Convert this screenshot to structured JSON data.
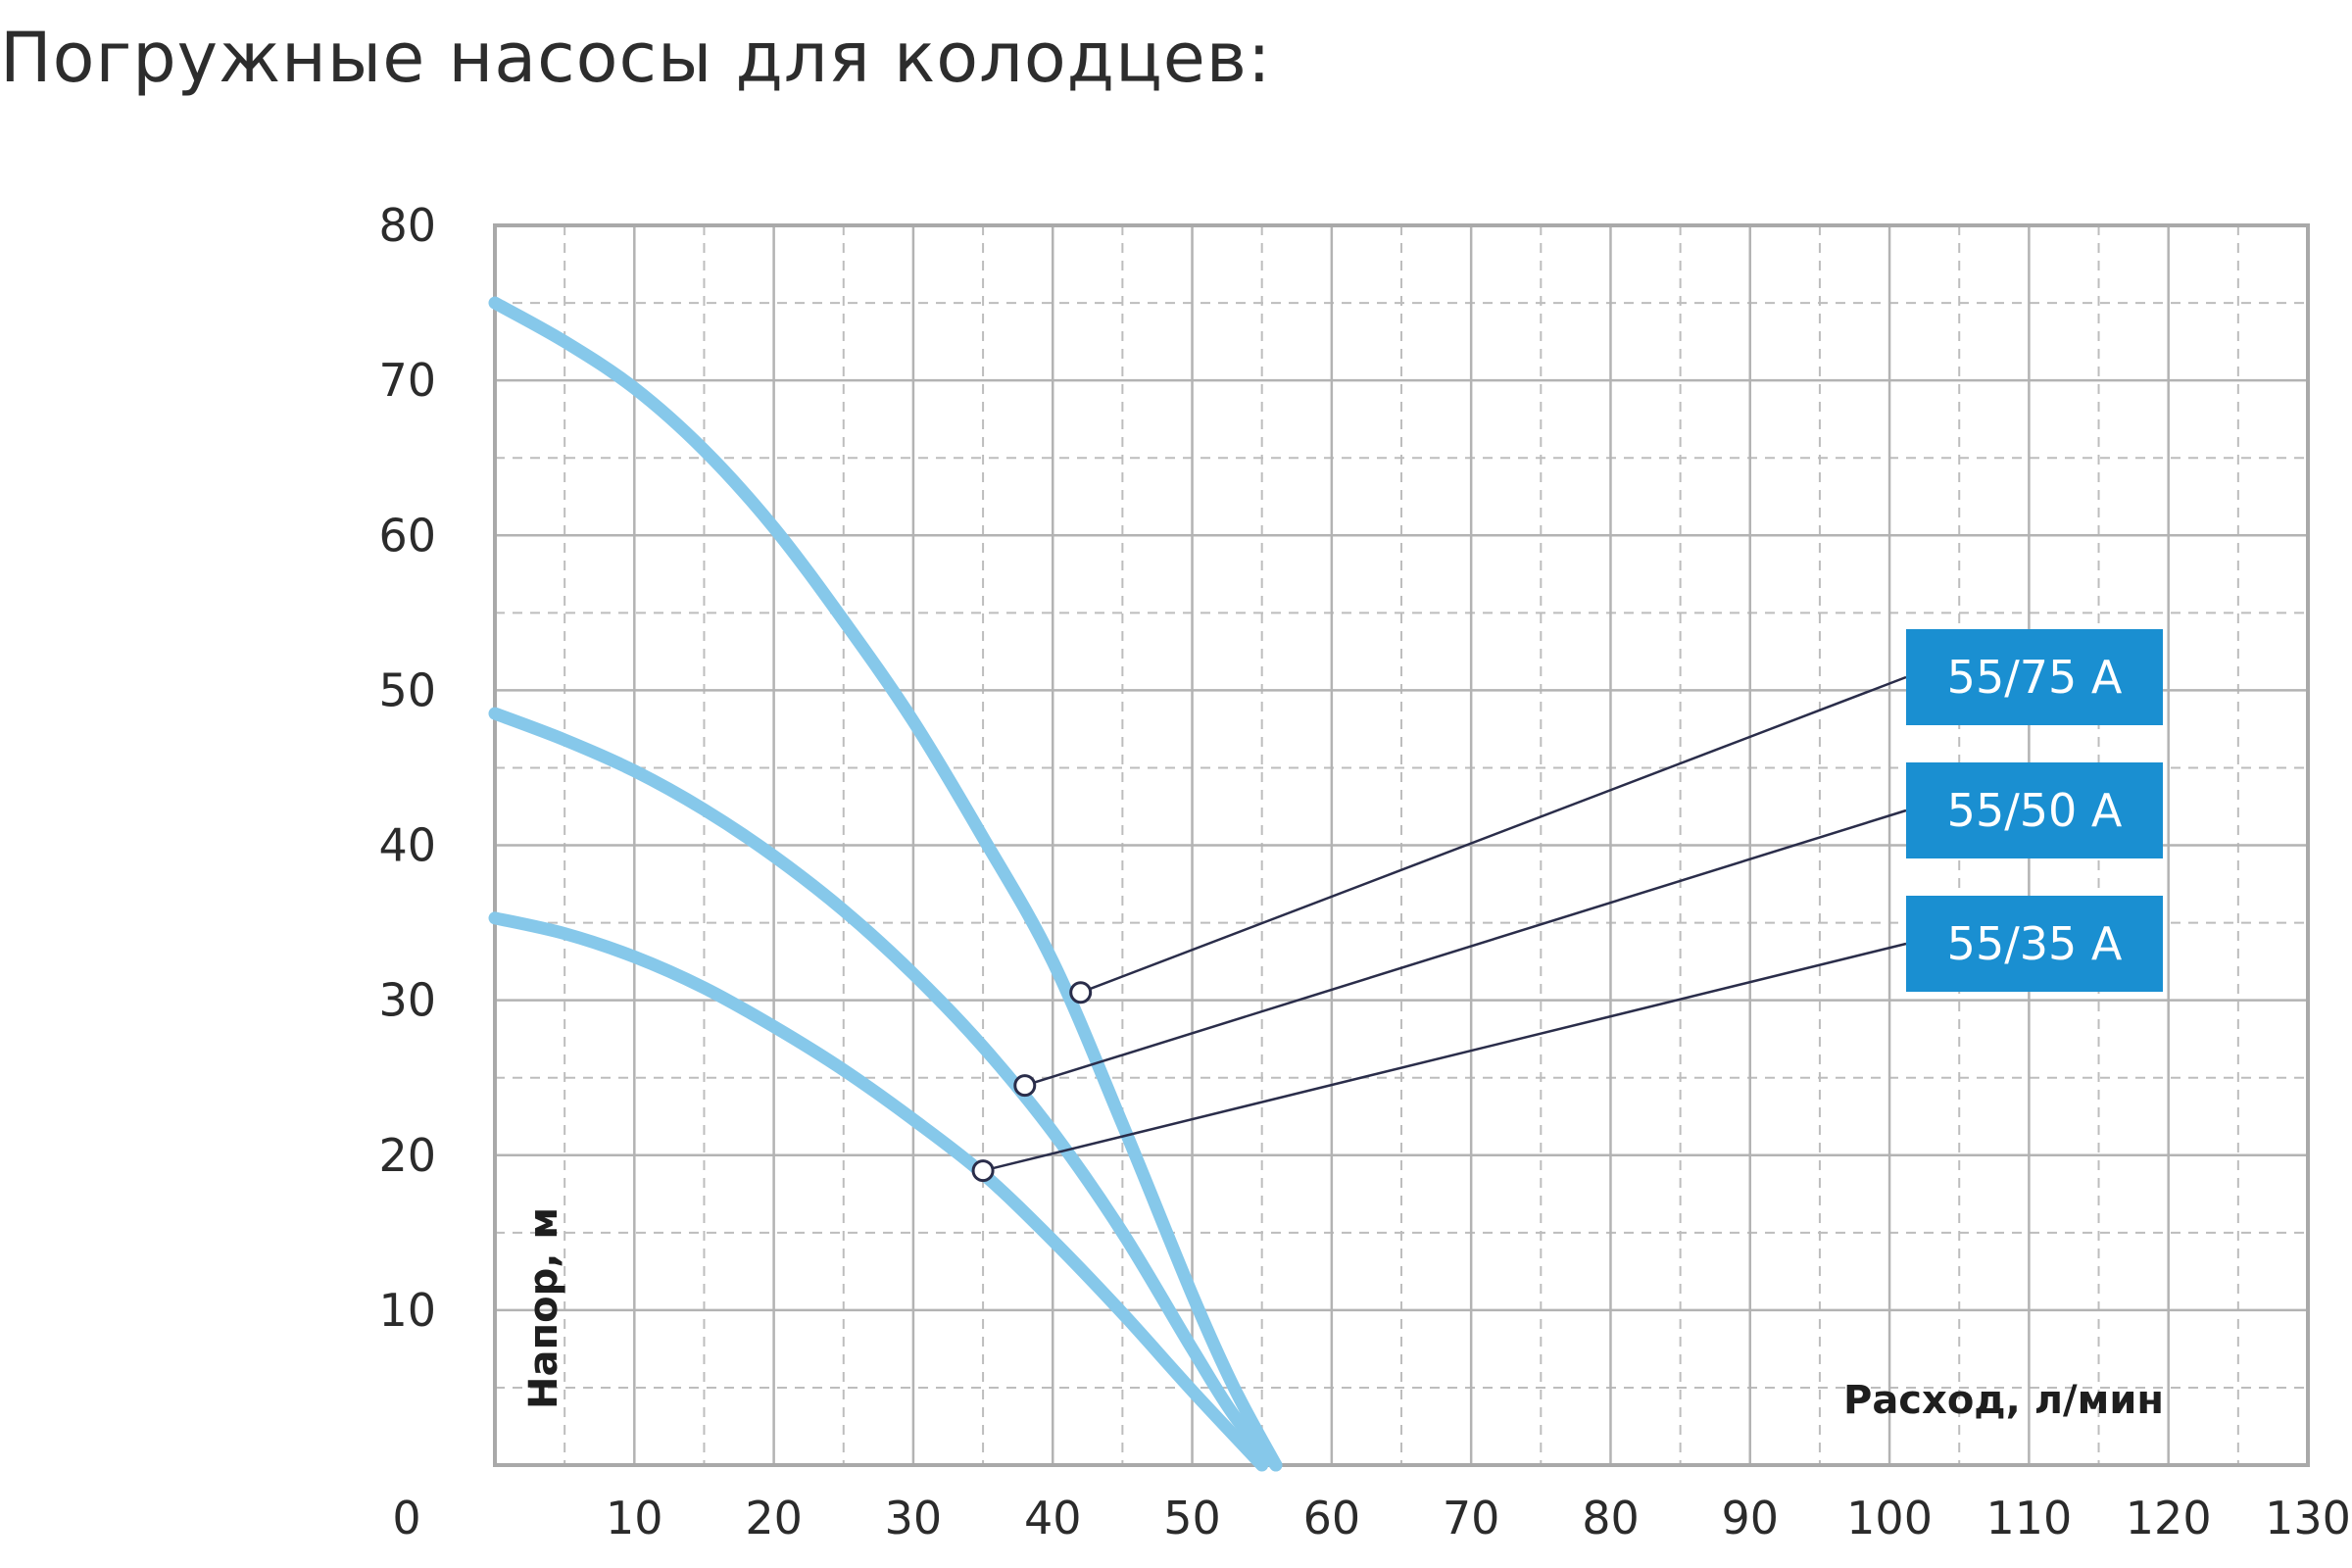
{
  "title": "Погружные насосы для колодцев:",
  "chart_data": {
    "type": "line",
    "xlabel": "Расход, л/мин",
    "ylabel": "Напор, м",
    "xlim": [
      0,
      130
    ],
    "ylim": [
      0,
      80
    ],
    "x_ticks": [
      "0",
      "10",
      "20",
      "30",
      "40",
      "50",
      "60",
      "70",
      "80",
      "90",
      "100",
      "110",
      "120",
      "130"
    ],
    "y_ticks": [
      "10",
      "20",
      "30",
      "40",
      "50",
      "60",
      "70",
      "80"
    ],
    "grid": "major solid, minor dashed",
    "line_color": "#86c8ea",
    "label_color": "#1a8fd1",
    "series": [
      {
        "name": "55/75 A",
        "x": [
          0,
          5,
          10,
          15,
          20,
          25,
          30,
          35,
          40,
          45,
          50,
          53,
          56
        ],
        "y": [
          75,
          72.5,
          69.5,
          65.5,
          60.5,
          54.5,
          48,
          40.5,
          32.5,
          22,
          11,
          5,
          0
        ],
        "marker": {
          "x": 42,
          "y": 30.5
        }
      },
      {
        "name": "55/50 A",
        "x": [
          0,
          5,
          10,
          15,
          20,
          25,
          30,
          35,
          40,
          45,
          50,
          53,
          56
        ],
        "y": [
          48.5,
          46.8,
          44.8,
          42.3,
          39.3,
          35.8,
          31.7,
          27,
          21.5,
          15,
          7.5,
          3.2,
          0
        ],
        "marker": {
          "x": 38,
          "y": 24.5
        }
      },
      {
        "name": "55/35 A",
        "x": [
          0,
          5,
          10,
          15,
          20,
          25,
          30,
          35,
          40,
          45,
          50,
          55
        ],
        "y": [
          35.3,
          34.3,
          32.8,
          30.8,
          28.3,
          25.5,
          22.3,
          18.8,
          14.5,
          9.8,
          4.8,
          0
        ],
        "marker": {
          "x": 35,
          "y": 19
        }
      }
    ]
  }
}
